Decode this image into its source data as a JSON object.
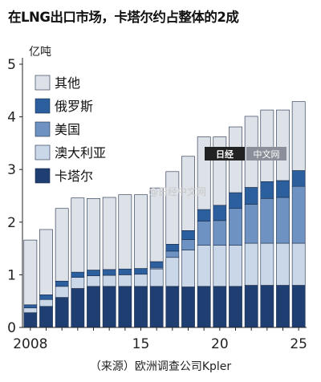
{
  "title": "在LNG出口市场，卡塔尔约占整体的2成",
  "footer": "（来源）欧洲调查公司Kpler",
  "watermark": {
    "logo": "日经",
    "site": "中文网",
    "weibo": "@日经中文网"
  },
  "chart_data": {
    "type": "bar",
    "stacked": true,
    "unit": "亿吨",
    "ylim": [
      0,
      5
    ],
    "yticks": [
      0,
      1,
      2,
      3,
      4,
      5
    ],
    "grid": false,
    "legend_position": "top-left",
    "categories": [
      "2008",
      "2009",
      "2010",
      "2011",
      "2012",
      "2013",
      "2014",
      "2015",
      "2016",
      "2017",
      "2018",
      "2019",
      "2020",
      "2021",
      "2022",
      "2023",
      "2024",
      "2025"
    ],
    "x_tick_labels": {
      "2008": "2008",
      "2015": "15",
      "2020": "20",
      "2025": "25"
    },
    "series": [
      {
        "name": "卡塔尔",
        "color": "#1f3f73",
        "values": [
          0.28,
          0.4,
          0.57,
          0.74,
          0.78,
          0.78,
          0.78,
          0.78,
          0.78,
          0.78,
          0.77,
          0.78,
          0.78,
          0.78,
          0.8,
          0.8,
          0.8,
          0.8
        ]
      },
      {
        "name": "澳大利亚",
        "color": "#c9d7e8",
        "values": [
          0.09,
          0.13,
          0.21,
          0.21,
          0.2,
          0.21,
          0.22,
          0.23,
          0.33,
          0.55,
          0.7,
          0.78,
          0.78,
          0.78,
          0.8,
          0.8,
          0.8,
          0.8
        ]
      },
      {
        "name": "美国",
        "color": "#6e93c2",
        "values": [
          0.0,
          0.0,
          0.0,
          0.0,
          0.0,
          0.0,
          0.0,
          0.0,
          0.03,
          0.12,
          0.2,
          0.46,
          0.47,
          0.7,
          0.74,
          0.85,
          0.87,
          1.08
        ]
      },
      {
        "name": "俄罗斯",
        "color": "#2c5f9e",
        "values": [
          0.06,
          0.09,
          0.1,
          0.1,
          0.11,
          0.11,
          0.11,
          0.11,
          0.11,
          0.13,
          0.17,
          0.22,
          0.29,
          0.3,
          0.32,
          0.32,
          0.32,
          0.3
        ]
      },
      {
        "name": "其他",
        "color": "#dde1e8",
        "values": [
          1.23,
          1.24,
          1.38,
          1.41,
          1.36,
          1.37,
          1.41,
          1.4,
          1.4,
          1.38,
          1.41,
          1.38,
          1.3,
          1.25,
          1.35,
          1.36,
          1.34,
          1.31
        ]
      }
    ],
    "legend_order": [
      "其他",
      "俄罗斯",
      "美国",
      "澳大利亚",
      "卡塔尔"
    ]
  }
}
